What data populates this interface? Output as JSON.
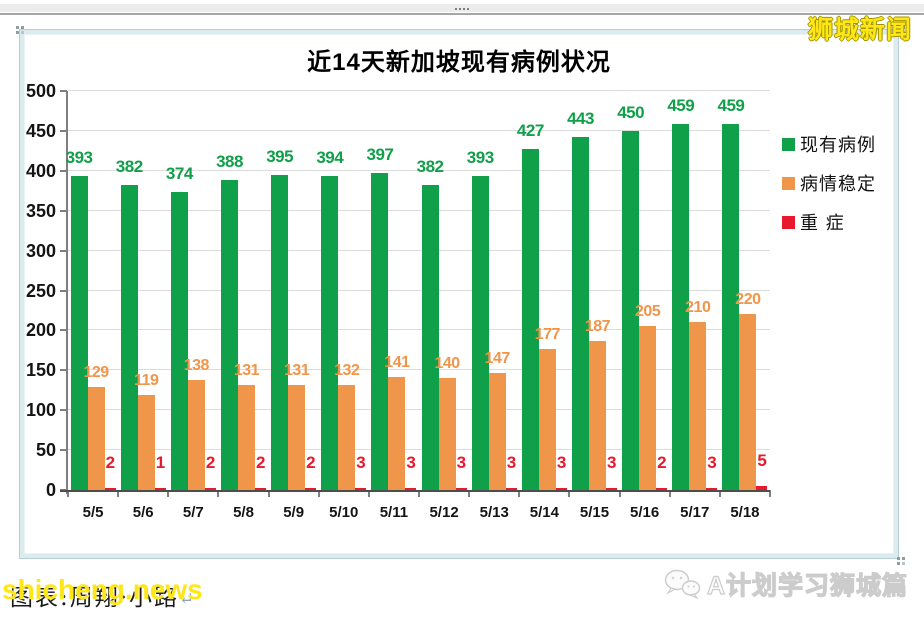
{
  "page": {
    "brand": "狮城新闻",
    "credit": "图表:周翔·小路",
    "credit_mark": "↵",
    "watermark_yellow": "shicheng.news",
    "watermark_gray": "A计划学习狮城篇"
  },
  "chart_data": {
    "type": "bar",
    "title": "近14天新加坡现有病例状况",
    "categories": [
      "5/5",
      "5/6",
      "5/7",
      "5/8",
      "5/9",
      "5/10",
      "5/11",
      "5/12",
      "5/13",
      "5/14",
      "5/15",
      "5/16",
      "5/17",
      "5/18"
    ],
    "series": [
      {
        "name": "现有病例",
        "color": "#11a04a",
        "values": [
          393,
          382,
          374,
          388,
          395,
          394,
          397,
          382,
          393,
          427,
          443,
          450,
          459,
          459
        ]
      },
      {
        "name": "病情稳定",
        "color": "#f0964b",
        "values": [
          129,
          119,
          138,
          131,
          131,
          132,
          141,
          140,
          147,
          177,
          187,
          205,
          210,
          220
        ]
      },
      {
        "name": "重 症",
        "color": "#e8192c",
        "values": [
          2,
          1,
          2,
          2,
          2,
          3,
          3,
          3,
          3,
          3,
          3,
          2,
          3,
          5
        ]
      }
    ],
    "xlabel": "",
    "ylabel": "",
    "ylim": [
      0,
      500
    ],
    "ytick_step": 50,
    "grid": true,
    "legend_position": "right"
  }
}
